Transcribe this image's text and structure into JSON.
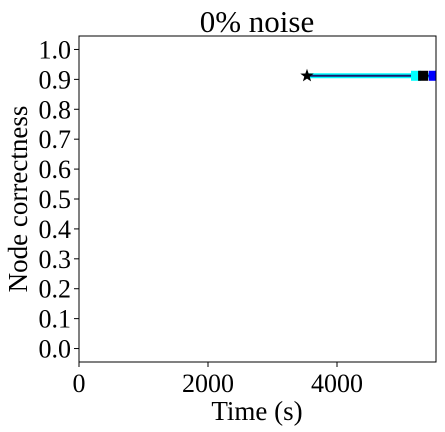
{
  "chart_data": {
    "type": "line",
    "title": "0% noise",
    "xlabel": "Time (s)",
    "ylabel": "Node correctness",
    "xlim": [
      0,
      5535
    ],
    "xticks": [
      0,
      2000,
      4000
    ],
    "ylim": [
      -0.045,
      1.045
    ],
    "yticks": [
      {
        "value": 0,
        "label": "0.0"
      },
      0.1,
      0.2,
      0.3,
      0.4,
      0.5,
      0.6,
      0.7,
      0.8,
      0.9,
      {
        "value": 1,
        "label": "1.0"
      }
    ],
    "series": [
      {
        "color": "#1a1a6e",
        "marker": "none",
        "x": [
          3535,
          5535
        ],
        "values": [
          0.912,
          0.912
        ]
      },
      {
        "color": "#00ffff",
        "marker": "square",
        "x": [
          5225
        ],
        "values": [
          0.912
        ]
      },
      {
        "color": "#000000",
        "marker": "square",
        "x": [
          5335
        ],
        "values": [
          0.912
        ]
      },
      {
        "color": "#0000ff",
        "marker": "square",
        "x": [
          5500
        ],
        "values": [
          0.912
        ]
      },
      {
        "color": "#000000",
        "marker": "star",
        "x": [
          3535
        ],
        "values": [
          0.912
        ]
      }
    ]
  }
}
